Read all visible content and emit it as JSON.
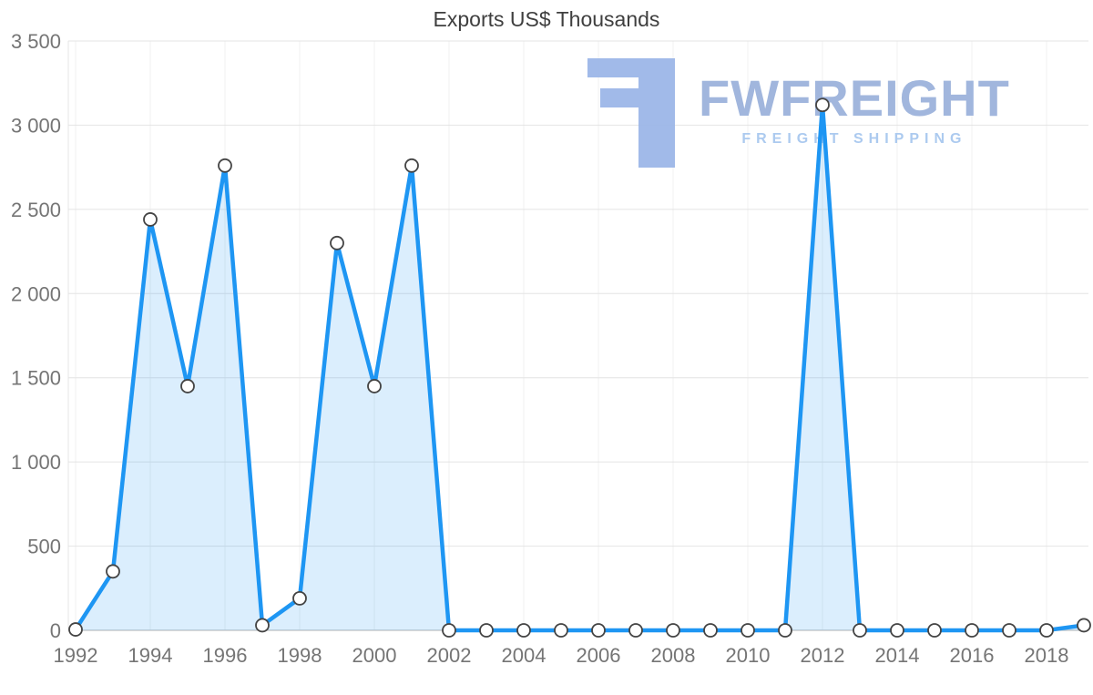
{
  "chart_data": {
    "type": "area",
    "title": "Exports US$ Thousands",
    "xlabel": "",
    "ylabel": "",
    "x": [
      1992,
      1993,
      1994,
      1995,
      1996,
      1997,
      1998,
      1999,
      2000,
      2001,
      2002,
      2003,
      2004,
      2005,
      2006,
      2007,
      2008,
      2009,
      2010,
      2011,
      2012,
      2013,
      2014,
      2015,
      2016,
      2017,
      2018,
      2019
    ],
    "values": [
      5,
      350,
      2440,
      1450,
      2760,
      30,
      190,
      2300,
      1450,
      2760,
      0,
      0,
      0,
      0,
      0,
      0,
      0,
      0,
      0,
      0,
      3120,
      0,
      0,
      0,
      0,
      0,
      0,
      30
    ],
    "ylim": [
      0,
      3500
    ],
    "grid": true,
    "legend": "none",
    "y_ticks": [
      {
        "value": 0,
        "label": "0"
      },
      {
        "value": 500,
        "label": "500"
      },
      {
        "value": 1000,
        "label": "1 000"
      },
      {
        "value": 1500,
        "label": "1 500"
      },
      {
        "value": 2000,
        "label": "2 000"
      },
      {
        "value": 2500,
        "label": "2 500"
      },
      {
        "value": 3000,
        "label": "3 000"
      },
      {
        "value": 3500,
        "label": "3 500"
      }
    ],
    "x_tick_labels": [
      "1992",
      "1994",
      "1996",
      "1998",
      "2000",
      "2002",
      "2004",
      "2006",
      "2008",
      "2010",
      "2012",
      "2014",
      "2016",
      "2018"
    ],
    "line_color": "#1e96f3",
    "area_opacity": 0.16,
    "marker_fill": "#ffffff",
    "marker_stroke": "#444444",
    "grid_color": "#e4e4e4",
    "grid_color_light": "#f0f0f0",
    "axis_line_color": "#cccccc",
    "axis_label_color": "#757575",
    "title_color": "#3f3f3f"
  },
  "watermark": {
    "brand": "FWFREIGHT",
    "tagline": "FREIGHT SHIPPING",
    "brand_color": "#9cb3dc",
    "tagline_color": "#a8c8ef",
    "logo_color": "#9db7e8"
  }
}
